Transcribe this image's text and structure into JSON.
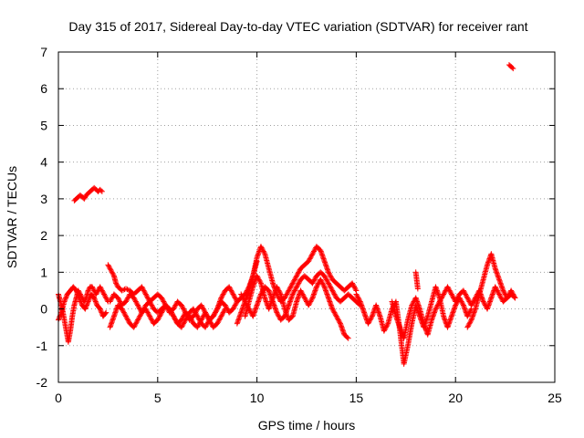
{
  "chart_data": {
    "type": "scatter",
    "title": "Day 315 of 2017, Sidereal Day-to-day VTEC variation (SDTVAR) for receiver rant",
    "xlabel": "GPS time / hours",
    "ylabel": "SDTVAR / TECUs",
    "xlim": [
      0,
      25
    ],
    "ylim": [
      -2,
      7
    ],
    "xticks": [
      0,
      5,
      10,
      15,
      20,
      25
    ],
    "yticks": [
      -2,
      -1,
      0,
      1,
      2,
      3,
      4,
      5,
      6,
      7
    ],
    "grid": true,
    "marker": "+",
    "marker_color": "#ff0000",
    "series": [
      {
        "name": "SDTVAR",
        "segments": [
          {
            "x": [
              0.0,
              0.1,
              0.2,
              0.3,
              0.4,
              0.5,
              0.6,
              0.7,
              0.8,
              0.9,
              1.0,
              1.1,
              1.2,
              1.3,
              1.4,
              1.5,
              1.6,
              1.7,
              1.8,
              1.9,
              2.0,
              2.1,
              2.2,
              2.3,
              2.4,
              2.5
            ],
            "y": [
              0.4,
              0.2,
              0.0,
              -0.3,
              -0.6,
              -0.9,
              -0.6,
              -0.2,
              0.1,
              0.3,
              0.5,
              0.4,
              0.3,
              0.2,
              0.3,
              0.5,
              0.6,
              0.6,
              0.5,
              0.4,
              0.5,
              0.6,
              0.5,
              0.4,
              0.3,
              0.2
            ]
          },
          {
            "x": [
              0.0,
              0.15,
              0.3,
              0.45,
              0.6,
              0.75,
              0.9,
              1.05,
              1.2,
              1.35,
              1.5,
              1.65,
              1.8,
              1.95,
              2.1,
              2.25,
              2.4
            ],
            "y": [
              -0.3,
              -0.1,
              0.2,
              0.4,
              0.5,
              0.6,
              0.5,
              0.3,
              0.1,
              0.0,
              0.2,
              0.4,
              0.3,
              0.1,
              0.0,
              -0.2,
              -0.1
            ]
          },
          {
            "x": [
              0.8,
              0.9,
              1.0,
              1.1,
              1.2,
              1.3,
              1.4,
              1.5,
              1.6,
              1.7,
              1.8,
              1.9,
              2.0,
              2.1,
              2.2
            ],
            "y": [
              2.95,
              3.0,
              3.05,
              3.1,
              3.05,
              3.0,
              3.1,
              3.15,
              3.2,
              3.25,
              3.3,
              3.25,
              3.2,
              3.25,
              3.2
            ]
          },
          {
            "x": [
              2.5,
              2.6,
              2.7,
              2.8,
              2.9,
              3.0,
              3.2,
              3.4,
              3.6,
              3.8,
              4.0,
              4.2,
              4.4,
              4.6,
              4.8,
              5.0,
              5.2,
              5.4,
              5.6,
              5.8,
              6.0,
              6.2,
              6.4,
              6.6,
              6.8,
              7.0,
              7.2,
              7.4,
              7.6,
              7.8,
              8.0,
              8.2,
              8.4,
              8.6,
              8.8,
              9.0,
              9.2,
              9.4,
              9.6,
              9.8,
              10.0
            ],
            "y": [
              1.2,
              1.1,
              1.0,
              0.9,
              0.7,
              0.6,
              0.5,
              0.55,
              0.5,
              0.4,
              0.5,
              0.6,
              0.4,
              0.2,
              0.3,
              0.4,
              0.3,
              0.1,
              -0.1,
              0.0,
              0.2,
              0.1,
              -0.1,
              -0.3,
              -0.2,
              0.0,
              0.1,
              -0.1,
              -0.3,
              -0.2,
              0.0,
              0.3,
              0.5,
              0.6,
              0.4,
              0.2,
              0.3,
              0.4,
              0.6,
              0.9,
              1.3
            ]
          },
          {
            "x": [
              2.6,
              2.8,
              3.0,
              3.2,
              3.4,
              3.6,
              3.8,
              4.0,
              4.2,
              4.4,
              4.6,
              4.8,
              5.0,
              5.2,
              5.4,
              5.6,
              5.8,
              6.0,
              6.2,
              6.4,
              6.6,
              6.8,
              7.0,
              7.2,
              7.4,
              7.6,
              7.8,
              8.0,
              8.2,
              8.4,
              8.6,
              8.8,
              9.0
            ],
            "y": [
              -0.5,
              -0.2,
              0.1,
              0.0,
              -0.2,
              -0.4,
              -0.5,
              -0.3,
              -0.1,
              0.1,
              0.2,
              0.0,
              -0.1,
              0.0,
              0.1,
              0.0,
              -0.2,
              -0.4,
              -0.5,
              -0.3,
              -0.1,
              0.0,
              -0.2,
              -0.4,
              -0.5,
              -0.3,
              -0.2,
              0.0,
              0.2,
              0.1,
              -0.1,
              0.0,
              0.2
            ]
          },
          {
            "x": [
              2.6,
              2.8,
              3.0,
              3.2,
              3.4,
              3.6,
              3.8,
              4.0,
              4.2,
              4.4,
              4.6,
              4.8,
              5.0,
              5.2,
              5.4,
              5.6,
              5.8,
              6.0,
              6.2,
              6.4,
              6.6,
              6.8,
              7.0,
              7.2,
              7.4,
              7.6,
              7.8,
              8.0,
              8.2,
              8.4
            ],
            "y": [
              0.2,
              0.4,
              0.3,
              0.1,
              0.2,
              0.4,
              0.3,
              0.1,
              -0.1,
              0.0,
              -0.2,
              -0.4,
              -0.3,
              -0.1,
              0.1,
              0.0,
              -0.2,
              -0.4,
              -0.3,
              -0.1,
              -0.2,
              -0.4,
              -0.5,
              -0.3,
              -0.1,
              -0.3,
              -0.5,
              -0.4,
              -0.2,
              0.0
            ]
          },
          {
            "x": [
              9.0,
              9.2,
              9.4,
              9.6,
              9.8,
              10.0,
              10.2,
              10.4,
              10.6,
              10.8,
              11.0,
              11.2,
              11.4,
              11.6,
              11.8,
              12.0,
              12.2,
              12.4,
              12.6,
              12.8,
              13.0,
              13.2,
              13.4,
              13.6,
              13.8,
              14.0,
              14.2,
              14.4,
              14.6,
              14.8,
              15.0
            ],
            "y": [
              -0.4,
              -0.1,
              0.2,
              0.5,
              0.9,
              1.4,
              1.7,
              1.5,
              1.1,
              0.7,
              0.4,
              0.2,
              0.3,
              0.5,
              0.7,
              0.9,
              1.1,
              1.2,
              1.3,
              1.5,
              1.7,
              1.6,
              1.3,
              1.0,
              0.8,
              0.7,
              0.6,
              0.5,
              0.6,
              0.7,
              0.5
            ]
          },
          {
            "x": [
              9.2,
              9.4,
              9.6,
              9.8,
              10.0,
              10.2,
              10.4,
              10.6,
              10.8,
              11.0,
              11.2,
              11.4,
              11.6,
              11.8,
              12.0,
              12.2,
              12.4,
              12.6,
              12.8,
              13.0,
              13.2,
              13.4,
              13.6,
              13.8,
              14.0,
              14.2,
              14.4,
              14.6,
              14.8,
              15.0,
              15.2
            ],
            "y": [
              0.4,
              0.2,
              0.0,
              -0.2,
              0.1,
              0.4,
              0.6,
              0.5,
              0.2,
              -0.1,
              -0.3,
              -0.2,
              0.1,
              0.4,
              0.6,
              0.8,
              0.9,
              0.8,
              0.7,
              0.9,
              1.0,
              0.9,
              0.7,
              0.5,
              0.3,
              0.2,
              0.3,
              0.4,
              0.3,
              0.2,
              0.1
            ]
          },
          {
            "x": [
              9.4,
              9.6,
              9.8,
              10.0,
              10.2,
              10.4,
              10.6,
              10.8,
              11.0,
              11.2,
              11.4,
              11.6,
              11.8,
              12.0,
              12.2,
              12.4,
              12.6,
              12.8,
              13.0,
              13.2,
              13.4,
              13.6,
              13.8,
              14.0,
              14.2,
              14.4,
              14.6
            ],
            "y": [
              -0.2,
              0.2,
              0.6,
              0.9,
              0.7,
              0.3,
              0.0,
              0.3,
              0.6,
              0.4,
              0.0,
              -0.3,
              -0.2,
              0.2,
              0.5,
              0.3,
              0.1,
              0.3,
              0.6,
              0.8,
              0.6,
              0.3,
              0.0,
              -0.2,
              -0.4,
              -0.7,
              -0.8
            ]
          },
          {
            "x": [
              15.0,
              15.2,
              15.4,
              15.6,
              15.8,
              16.0,
              16.2,
              16.4,
              16.6,
              16.8,
              17.0,
              17.2,
              17.4,
              17.6,
              17.8,
              18.0,
              18.2,
              18.4,
              18.6,
              18.8,
              19.0,
              19.2,
              19.4,
              19.6,
              19.8,
              20.0,
              20.2,
              20.4,
              20.6,
              20.8
            ],
            "y": [
              0.4,
              0.2,
              -0.1,
              -0.4,
              -0.2,
              0.1,
              -0.2,
              -0.6,
              -0.4,
              0.0,
              0.2,
              -0.6,
              -1.5,
              -1.0,
              -0.4,
              0.1,
              -0.2,
              -0.5,
              -0.2,
              0.2,
              0.6,
              0.3,
              -0.2,
              -0.5,
              -0.2,
              0.1,
              0.3,
              0.1,
              -0.2,
              0.0
            ]
          },
          {
            "x": [
              16.8,
              17.0,
              17.2,
              17.4,
              17.6,
              17.8,
              18.0,
              18.2,
              18.4,
              18.6,
              18.8,
              19.0,
              19.2,
              19.4,
              19.6,
              19.8,
              20.0,
              20.2,
              20.4,
              20.6,
              20.8,
              21.0,
              21.2,
              21.4,
              21.6,
              21.8,
              22.0,
              22.2,
              22.4,
              22.6,
              22.8,
              23.0
            ],
            "y": [
              0.2,
              -0.2,
              -0.5,
              -0.8,
              -0.3,
              0.1,
              0.3,
              0.0,
              -0.4,
              -0.7,
              -0.3,
              0.0,
              0.2,
              0.4,
              0.6,
              0.4,
              0.2,
              0.4,
              0.5,
              0.3,
              0.1,
              0.3,
              0.5,
              0.2,
              0.0,
              0.3,
              0.6,
              0.4,
              0.2,
              0.3,
              0.5,
              0.3
            ]
          },
          {
            "x": [
              20.6,
              20.8,
              21.0,
              21.2,
              21.4,
              21.6,
              21.8,
              22.0,
              22.2,
              22.4,
              22.6,
              22.8,
              23.0
            ],
            "y": [
              -0.5,
              -0.3,
              0.0,
              0.4,
              0.8,
              1.2,
              1.5,
              1.1,
              0.8,
              0.5,
              0.3,
              0.4,
              0.3
            ]
          },
          {
            "x": [
              22.7,
              22.8,
              22.9
            ],
            "y": [
              6.65,
              6.6,
              6.55
            ]
          },
          {
            "x": [
              18.0,
              18.1
            ],
            "y": [
              1.0,
              0.55
            ]
          }
        ]
      }
    ]
  }
}
